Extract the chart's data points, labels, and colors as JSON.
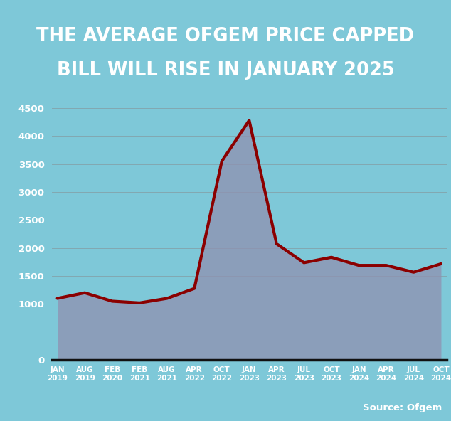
{
  "title_line1": "THE AVERAGE OFGEM PRICE CAPPED",
  "title_line2": "BILL WILL RISE IN JANUARY 2025",
  "source": "Source: Ofgem",
  "x_labels": [
    "JAN\n2019",
    "AUG\n2019",
    "FEB\n2020",
    "FEB\n2021",
    "AUG\n2021",
    "APR\n2022",
    "OCT\n2022",
    "JAN\n2023",
    "APR\n2023",
    "JUL\n2023",
    "OCT\n2023",
    "JAN\n2024",
    "APR\n2024",
    "JUL\n2024",
    "OCT\n2024"
  ],
  "values": [
    1100,
    1200,
    1050,
    1020,
    1100,
    1277,
    3549,
    4279,
    2074,
    1738,
    1834,
    1690,
    1690,
    1568,
    1717
  ],
  "ylim": [
    0,
    4700
  ],
  "yticks": [
    0,
    1000,
    1500,
    2000,
    2500,
    3000,
    3500,
    4000,
    4500
  ],
  "line_color": "#8B0000",
  "line_width": 3.0,
  "fill_color": "#9090B0",
  "fill_alpha": 0.75,
  "bg_color": "#7EC8D8",
  "title_bg": "#0A0A0A",
  "title_color": "#FFFFFF",
  "grid_color": "#888888",
  "grid_alpha": 0.5,
  "ytick_color": "#FFFFFF",
  "xtick_color": "#FFFFFF",
  "source_color": "#FFFFFF"
}
